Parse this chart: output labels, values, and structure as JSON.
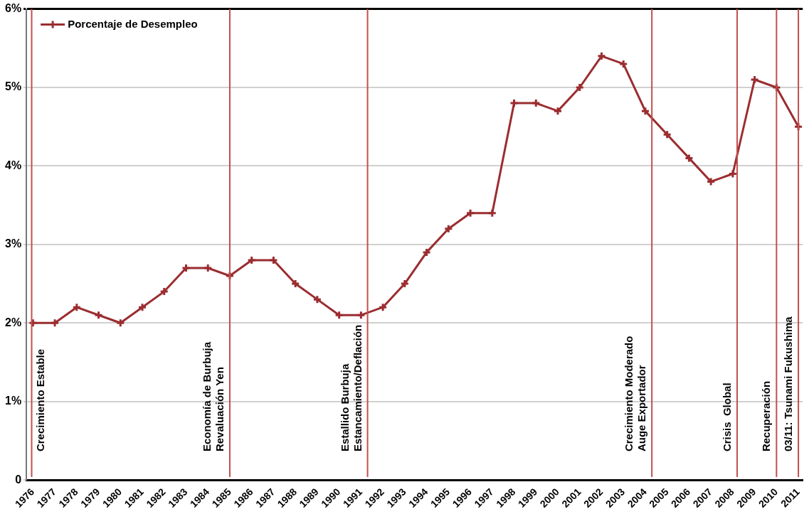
{
  "chart_data": {
    "type": "line",
    "x": [
      1976,
      1977,
      1978,
      1979,
      1980,
      1981,
      1982,
      1983,
      1984,
      1985,
      1986,
      1987,
      1988,
      1989,
      1990,
      1991,
      1992,
      1993,
      1994,
      1995,
      1996,
      1997,
      1998,
      1999,
      2000,
      2001,
      2002,
      2003,
      2004,
      2005,
      2006,
      2007,
      2008,
      2009,
      2010,
      2011
    ],
    "series": [
      {
        "name": "Porcentaje de Desempleo",
        "color": "#9b2d30",
        "values": [
          2.0,
          2.0,
          2.2,
          2.1,
          2.0,
          2.2,
          2.4,
          2.7,
          2.7,
          2.6,
          2.8,
          2.8,
          2.5,
          2.3,
          2.1,
          2.1,
          2.2,
          2.5,
          2.9,
          3.2,
          3.4,
          3.4,
          4.8,
          4.8,
          4.7,
          5.0,
          5.4,
          5.3,
          4.7,
          4.4,
          4.1,
          3.8,
          3.9,
          5.1,
          5.0,
          4.5
        ]
      }
    ],
    "xlim": [
      1975.7,
      2011.2
    ],
    "xticks": [
      1976,
      1977,
      1978,
      1979,
      1980,
      1981,
      1982,
      1983,
      1984,
      1985,
      1986,
      1987,
      1988,
      1989,
      1990,
      1991,
      1992,
      1993,
      1994,
      1995,
      1996,
      1997,
      1998,
      1999,
      2000,
      2001,
      2002,
      2003,
      2004,
      2005,
      2006,
      2007,
      2008,
      2009,
      2010,
      2011
    ],
    "ylim": [
      0,
      6
    ],
    "yticks": [
      {
        "value": 0,
        "label": "0"
      },
      {
        "value": 1,
        "label": "1%"
      },
      {
        "value": 2,
        "label": "2%"
      },
      {
        "value": 3,
        "label": "3%"
      },
      {
        "value": 4,
        "label": "4%"
      },
      {
        "value": 5,
        "label": "5%"
      },
      {
        "value": 6,
        "label": "6%"
      }
    ],
    "grid": "y",
    "legend": "top left",
    "marker": "cross",
    "line_style": "solid",
    "ref_lines": [
      {
        "axis": "x",
        "value": 1975.94,
        "label": "Crecimiento Estable",
        "color": "#c0504d"
      },
      {
        "axis": "x",
        "value": 1985,
        "label": "Economía de Burbuja\nRevaluación Yen",
        "color": "#c0504d"
      },
      {
        "axis": "x",
        "value": 1991.3,
        "label": "Estallido Burbuja\nEstancamiento/Deflación",
        "color": "#c0504d"
      },
      {
        "axis": "x",
        "value": 2004.3,
        "label": "Crecimiento Moderado\nAuge Exportador",
        "color": "#c0504d"
      },
      {
        "axis": "x",
        "value": 2008.2,
        "label": "Crisis  Global",
        "color": "#c0504d"
      },
      {
        "axis": "x",
        "value": 2010,
        "label": "Recuperación",
        "color": "#c0504d"
      },
      {
        "axis": "x",
        "value": 2011,
        "label": "03/11: Tsunami Fukushima",
        "color": "#c0504d"
      }
    ]
  }
}
